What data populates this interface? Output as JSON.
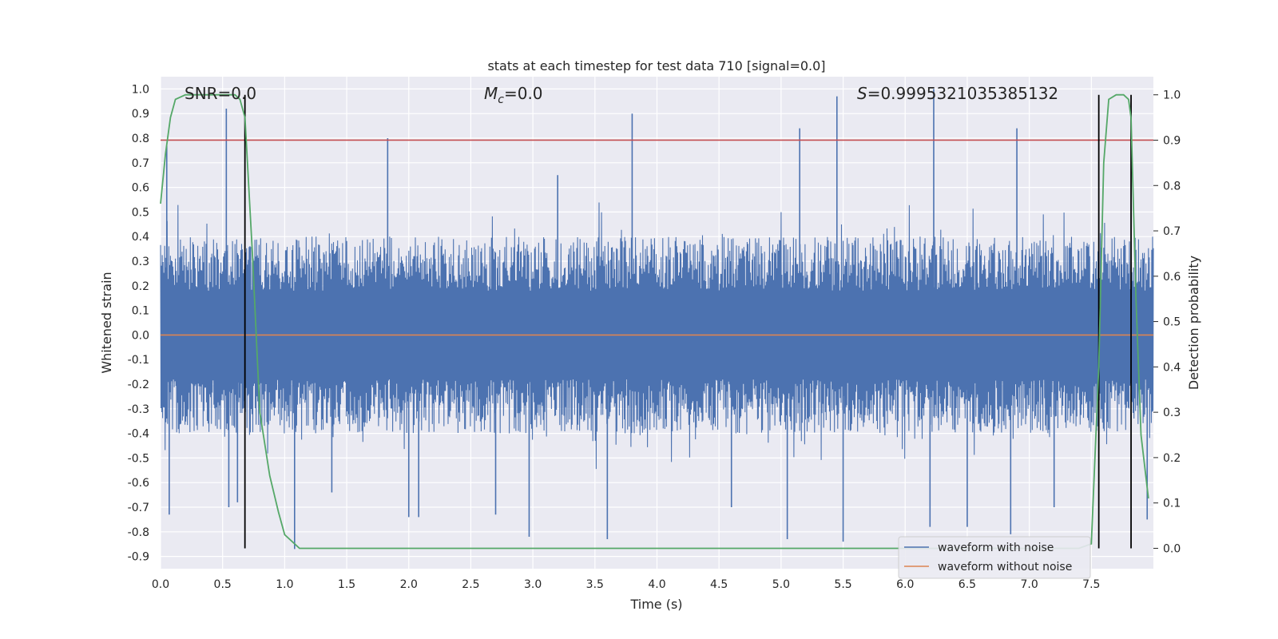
{
  "chart_data": {
    "type": "line",
    "title": "stats at each timestep for test data 710 [signal=0.0]",
    "xlabel": "Time (s)",
    "ylabel": "Whitened strain",
    "y2label": "Detection probability",
    "xlim": [
      0.0,
      8.0
    ],
    "ylim": [
      -0.95,
      1.05
    ],
    "y2lim": [
      -0.045,
      1.04
    ],
    "x_ticks": [
      0.0,
      0.5,
      1.0,
      1.5,
      2.0,
      2.5,
      3.0,
      3.5,
      4.0,
      4.5,
      5.0,
      5.5,
      6.0,
      6.5,
      7.0,
      7.5
    ],
    "x_tick_labels": [
      "0.0",
      "0.5",
      "1.0",
      "1.5",
      "2.0",
      "2.5",
      "3.0",
      "3.5",
      "4.0",
      "4.5",
      "5.0",
      "5.5",
      "6.0",
      "6.5",
      "7.0",
      "7.5"
    ],
    "y_ticks": [
      1.0,
      0.9,
      0.8,
      0.7,
      0.6,
      0.5,
      0.4,
      0.3,
      0.2,
      0.1,
      0.0,
      -0.1,
      -0.2,
      -0.3,
      -0.4,
      -0.5,
      -0.6,
      -0.7,
      -0.8,
      -0.9
    ],
    "y_tick_labels": [
      "1.0",
      "0.9",
      "0.8",
      "0.7",
      "0.6",
      "0.5",
      "0.4",
      "0.3",
      "0.2",
      "0.1",
      "0.0",
      "-0.1",
      "-0.2",
      "-0.3",
      "-0.4",
      "-0.5",
      "-0.6",
      "-0.7",
      "-0.8",
      "-0.9"
    ],
    "y2_ticks": [
      1.0,
      0.9,
      0.8,
      0.7,
      0.6,
      0.5,
      0.4,
      0.3,
      0.2,
      0.1,
      0.0
    ],
    "y2_tick_labels": [
      "1.0",
      "0.9",
      "0.8",
      "0.7",
      "0.6",
      "0.5",
      "0.4",
      "0.3",
      "0.2",
      "0.1",
      "0.0"
    ],
    "grid": true,
    "legend_position": "bottom-right",
    "annotations": {
      "snr": "SNR=0.0",
      "mc_symbol": "M",
      "mc_sub": "c",
      "mc_value": "=0.0",
      "s_symbol": "S",
      "s_value": "=0.9995321035385132"
    },
    "threshold": {
      "axis": "y2",
      "value": 0.9,
      "color": "#c44e52"
    },
    "vlines": [
      0.68,
      7.56,
      7.82
    ],
    "vline_range_y2": [
      0.0,
      1.0
    ],
    "noise_envelope": {
      "positive_typical": 0.35,
      "negative_typical": -0.35
    },
    "spikes": [
      {
        "x": 0.53,
        "y": 0.92
      },
      {
        "x": 0.05,
        "y": 0.77
      },
      {
        "x": 0.07,
        "y": -0.73
      },
      {
        "x": 0.55,
        "y": -0.7
      },
      {
        "x": 0.62,
        "y": -0.68
      },
      {
        "x": 1.08,
        "y": -0.87
      },
      {
        "x": 1.38,
        "y": -0.64
      },
      {
        "x": 1.83,
        "y": 0.8
      },
      {
        "x": 2.0,
        "y": -0.74
      },
      {
        "x": 2.08,
        "y": -0.74
      },
      {
        "x": 2.7,
        "y": -0.73
      },
      {
        "x": 2.97,
        "y": -0.82
      },
      {
        "x": 3.2,
        "y": 0.65
      },
      {
        "x": 3.6,
        "y": -0.83
      },
      {
        "x": 3.8,
        "y": 0.9
      },
      {
        "x": 4.6,
        "y": -0.7
      },
      {
        "x": 5.05,
        "y": -0.83
      },
      {
        "x": 5.15,
        "y": 0.84
      },
      {
        "x": 5.45,
        "y": 0.97
      },
      {
        "x": 5.5,
        "y": -0.84
      },
      {
        "x": 6.2,
        "y": -0.78
      },
      {
        "x": 6.23,
        "y": 1.0
      },
      {
        "x": 6.5,
        "y": -0.78
      },
      {
        "x": 6.9,
        "y": 0.84
      },
      {
        "x": 6.85,
        "y": -0.81
      },
      {
        "x": 7.2,
        "y": -0.7
      },
      {
        "x": 7.95,
        "y": -0.75
      }
    ],
    "series": [
      {
        "name": "waveform with noise",
        "axis": "y",
        "color": "#4c72b0",
        "description_only": false
      },
      {
        "name": "waveform without noise",
        "axis": "y",
        "color": "#dd8452",
        "x": [
          0.0,
          8.0
        ],
        "y": [
          0.0,
          0.0
        ]
      },
      {
        "axis": "y2",
        "color": "#55a868",
        "x": [
          0.0,
          0.04,
          0.08,
          0.12,
          0.2,
          0.3,
          0.4,
          0.5,
          0.6,
          0.64,
          0.68,
          0.74,
          0.8,
          0.88,
          0.95,
          1.0,
          1.08,
          1.12,
          1.3,
          2.0,
          3.0,
          4.0,
          5.0,
          6.0,
          7.0,
          7.4,
          7.5,
          7.56,
          7.6,
          7.64,
          7.7,
          7.76,
          7.8,
          7.82,
          7.86,
          7.9,
          7.96
        ],
        "y": [
          0.76,
          0.87,
          0.95,
          0.99,
          1.0,
          1.0,
          1.0,
          1.0,
          1.0,
          0.99,
          0.95,
          0.65,
          0.3,
          0.16,
          0.08,
          0.03,
          0.01,
          0.0,
          0.0,
          0.0,
          0.0,
          0.0,
          0.0,
          0.0,
          0.0,
          0.0,
          0.01,
          0.4,
          0.85,
          0.99,
          1.0,
          1.0,
          0.99,
          0.95,
          0.55,
          0.25,
          0.11
        ]
      }
    ]
  }
}
